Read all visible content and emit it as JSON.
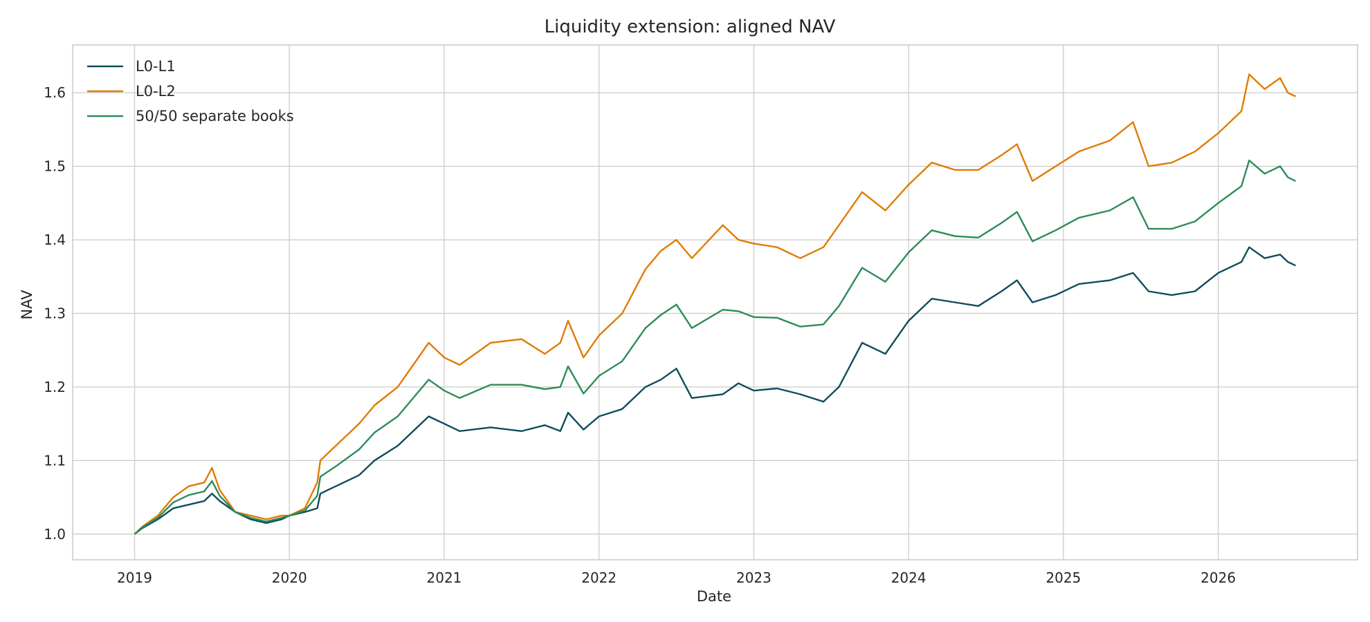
{
  "chart_data": {
    "type": "line",
    "title": "Liquidity extension: aligned NAV",
    "xlabel": "Date",
    "ylabel": "NAV",
    "xlim": [
      2018.6,
      2026.9
    ],
    "ylim": [
      0.965,
      1.665
    ],
    "x_ticks": [
      2019,
      2020,
      2021,
      2022,
      2023,
      2024,
      2025,
      2026
    ],
    "x_tick_labels": [
      "2019",
      "2020",
      "2021",
      "2022",
      "2023",
      "2024",
      "2025",
      "2026"
    ],
    "y_ticks": [
      1.0,
      1.1,
      1.2,
      1.3,
      1.4,
      1.5,
      1.6
    ],
    "y_tick_labels": [
      "1.0",
      "1.1",
      "1.2",
      "1.3",
      "1.4",
      "1.5",
      "1.6"
    ],
    "grid": true,
    "legend_position": "top-left",
    "x": [
      2019.0,
      2019.05,
      2019.15,
      2019.25,
      2019.35,
      2019.45,
      2019.5,
      2019.55,
      2019.65,
      2019.75,
      2019.85,
      2019.95,
      2020.0,
      2020.1,
      2020.18,
      2020.2,
      2020.3,
      2020.45,
      2020.55,
      2020.7,
      2020.8,
      2020.9,
      2021.0,
      2021.1,
      2021.3,
      2021.5,
      2021.65,
      2021.75,
      2021.8,
      2021.9,
      2022.0,
      2022.15,
      2022.3,
      2022.4,
      2022.5,
      2022.6,
      2022.8,
      2022.9,
      2023.0,
      2023.15,
      2023.3,
      2023.45,
      2023.55,
      2023.7,
      2023.85,
      2024.0,
      2024.15,
      2024.3,
      2024.45,
      2024.6,
      2024.7,
      2024.8,
      2024.95,
      2025.1,
      2025.3,
      2025.45,
      2025.55,
      2025.7,
      2025.85,
      2026.0,
      2026.15,
      2026.2,
      2026.3,
      2026.4,
      2026.45,
      2026.5
    ],
    "series": [
      {
        "name": "L0-L1",
        "color": "#0f4c5c",
        "values": [
          1.0,
          1.008,
          1.02,
          1.035,
          1.04,
          1.045,
          1.055,
          1.045,
          1.03,
          1.02,
          1.015,
          1.02,
          1.025,
          1.03,
          1.035,
          1.055,
          1.065,
          1.08,
          1.1,
          1.12,
          1.14,
          1.16,
          1.15,
          1.14,
          1.145,
          1.14,
          1.148,
          1.14,
          1.165,
          1.142,
          1.16,
          1.17,
          1.2,
          1.21,
          1.225,
          1.185,
          1.19,
          1.205,
          1.195,
          1.198,
          1.19,
          1.18,
          1.2,
          1.26,
          1.245,
          1.29,
          1.32,
          1.315,
          1.31,
          1.33,
          1.345,
          1.315,
          1.325,
          1.34,
          1.345,
          1.355,
          1.33,
          1.325,
          1.33,
          1.355,
          1.37,
          1.39,
          1.375,
          1.38,
          1.37,
          1.365
        ]
      },
      {
        "name": "L0-L2",
        "color": "#e07b00",
        "values": [
          1.0,
          1.01,
          1.025,
          1.05,
          1.065,
          1.07,
          1.09,
          1.06,
          1.03,
          1.025,
          1.02,
          1.025,
          1.025,
          1.035,
          1.07,
          1.1,
          1.12,
          1.15,
          1.175,
          1.2,
          1.23,
          1.26,
          1.24,
          1.23,
          1.26,
          1.265,
          1.245,
          1.26,
          1.29,
          1.24,
          1.27,
          1.3,
          1.36,
          1.385,
          1.4,
          1.375,
          1.42,
          1.4,
          1.395,
          1.39,
          1.375,
          1.39,
          1.42,
          1.465,
          1.44,
          1.475,
          1.505,
          1.495,
          1.495,
          1.515,
          1.53,
          1.48,
          1.5,
          1.52,
          1.535,
          1.56,
          1.5,
          1.505,
          1.52,
          1.545,
          1.575,
          1.625,
          1.605,
          1.62,
          1.6,
          1.595
        ]
      },
      {
        "name": "50/50 separate books",
        "color": "#2e8b57",
        "values": [
          1.0,
          1.009,
          1.022,
          1.043,
          1.053,
          1.058,
          1.072,
          1.052,
          1.03,
          1.022,
          1.017,
          1.022,
          1.025,
          1.032,
          1.052,
          1.078,
          1.092,
          1.115,
          1.138,
          1.16,
          1.185,
          1.21,
          1.195,
          1.185,
          1.203,
          1.203,
          1.197,
          1.2,
          1.228,
          1.191,
          1.215,
          1.235,
          1.28,
          1.298,
          1.312,
          1.28,
          1.305,
          1.303,
          1.295,
          1.294,
          1.282,
          1.285,
          1.31,
          1.362,
          1.343,
          1.383,
          1.413,
          1.405,
          1.403,
          1.423,
          1.438,
          1.398,
          1.413,
          1.43,
          1.44,
          1.458,
          1.415,
          1.415,
          1.425,
          1.45,
          1.473,
          1.508,
          1.49,
          1.5,
          1.485,
          1.48
        ]
      }
    ]
  }
}
